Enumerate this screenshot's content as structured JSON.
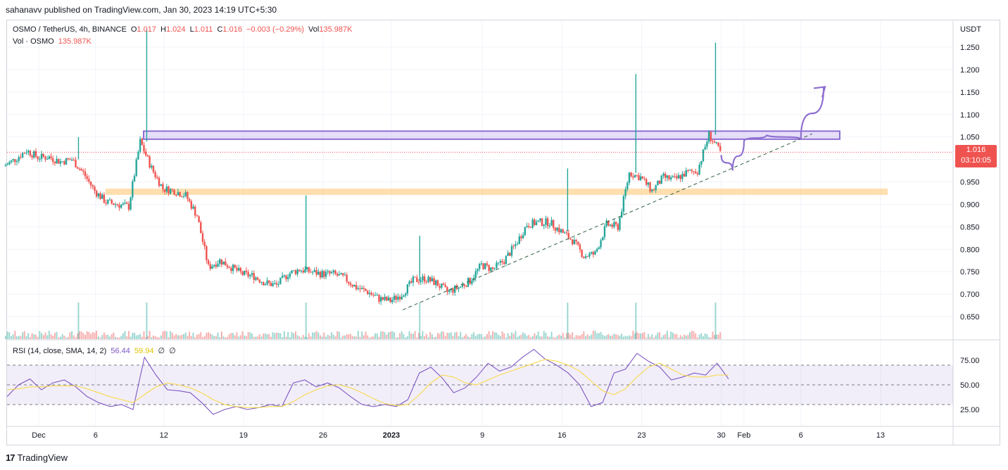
{
  "header": {
    "published": "sahanavv published on TradingView.com, Jan 30, 2023 14:19 UTC+5:30"
  },
  "legend": {
    "symbol": "OSMO / TetherUS, 4h, BINANCE",
    "o_label": "O",
    "o_value": "1.017",
    "h_label": "H",
    "h_value": "1.024",
    "l_label": "L",
    "l_value": "1.011",
    "c_label": "C",
    "c_value": "1.016",
    "change": "−0.003 (−0.29%)",
    "vol_label": "Vol",
    "vol_value": "135.987K",
    "vol_line_label": "Vol · OSMO",
    "vol_line_value": "135.987K"
  },
  "rsi_legend": {
    "label": "RSI (14, close, SMA, 14, 2)",
    "rsi_value": "56.44",
    "sma_value": "59.94",
    "extra1": "∅",
    "extra2": "∅"
  },
  "price_tag": {
    "price": "1.016",
    "countdown": "03:10:05"
  },
  "footer": {
    "brand": "TradingView",
    "logo_glyph": "17"
  },
  "colors": {
    "up": "#26a69a",
    "down": "#ef5350",
    "rsi": "#7e57c2",
    "rsi_ma": "#f7d94c",
    "resistance": "#8e6fd1",
    "support": "#ffc56e"
  },
  "chart_data": [
    {
      "type": "candlestick",
      "title": "OSMO / TetherUS, 4h, BINANCE",
      "y_axis_unit": "USDT",
      "ylim": [
        0.615,
        1.29
      ],
      "y_ticks": [
        "1.250",
        "1.200",
        "1.150",
        "1.100",
        "1.050",
        "1.000",
        "0.950",
        "0.900",
        "0.850",
        "0.800",
        "0.750",
        "0.700",
        "0.650"
      ],
      "x_ticks": [
        "Dec",
        "6",
        "12",
        "19",
        "26",
        "2023",
        "9",
        "16",
        "23",
        "30",
        "Feb",
        "6",
        "13"
      ],
      "last_price": 1.016,
      "series_close": [
        {
          "date": "Nov 28",
          "close": 0.985
        },
        {
          "date": "Nov 29",
          "close": 1.0
        },
        {
          "date": "Nov 30",
          "close": 1.02
        },
        {
          "date": "Dec 1",
          "close": 1.005
        },
        {
          "date": "Dec 2",
          "close": 1.005
        },
        {
          "date": "Dec 3",
          "close": 0.995
        },
        {
          "date": "Dec 4",
          "close": 1.0
        },
        {
          "date": "Dec 5",
          "close": 0.97
        },
        {
          "date": "Dec 6",
          "close": 0.93
        },
        {
          "date": "Dec 7",
          "close": 0.905
        },
        {
          "date": "Dec 8",
          "close": 0.9
        },
        {
          "date": "Dec 9",
          "close": 0.895
        },
        {
          "date": "Dec 10",
          "close": 1.04
        },
        {
          "date": "Dec 11",
          "close": 0.98
        },
        {
          "date": "Dec 12",
          "close": 0.935
        },
        {
          "date": "Dec 13",
          "close": 0.93
        },
        {
          "date": "Dec 14",
          "close": 0.92
        },
        {
          "date": "Dec 15",
          "close": 0.875
        },
        {
          "date": "Dec 16",
          "close": 0.76
        },
        {
          "date": "Dec 17",
          "close": 0.775
        },
        {
          "date": "Dec 18",
          "close": 0.76
        },
        {
          "date": "Dec 19",
          "close": 0.745
        },
        {
          "date": "Dec 20",
          "close": 0.74
        },
        {
          "date": "Dec 21",
          "close": 0.725
        },
        {
          "date": "Dec 22",
          "close": 0.72
        },
        {
          "date": "Dec 23",
          "close": 0.745
        },
        {
          "date": "Dec 24",
          "close": 0.755
        },
        {
          "date": "Dec 25",
          "close": 0.75
        },
        {
          "date": "Dec 26",
          "close": 0.745
        },
        {
          "date": "Dec 27",
          "close": 0.745
        },
        {
          "date": "Dec 28",
          "close": 0.735
        },
        {
          "date": "Dec 29",
          "close": 0.715
        },
        {
          "date": "Dec 30",
          "close": 0.705
        },
        {
          "date": "Dec 31",
          "close": 0.69
        },
        {
          "date": "Jan 1",
          "close": 0.685
        },
        {
          "date": "Jan 2",
          "close": 0.7
        },
        {
          "date": "Jan 3",
          "close": 0.73
        },
        {
          "date": "Jan 4",
          "close": 0.735
        },
        {
          "date": "Jan 5",
          "close": 0.725
        },
        {
          "date": "Jan 6",
          "close": 0.705
        },
        {
          "date": "Jan 7",
          "close": 0.715
        },
        {
          "date": "Jan 8",
          "close": 0.73
        },
        {
          "date": "Jan 9",
          "close": 0.765
        },
        {
          "date": "Jan 10",
          "close": 0.755
        },
        {
          "date": "Jan 11",
          "close": 0.775
        },
        {
          "date": "Jan 12",
          "close": 0.81
        },
        {
          "date": "Jan 13",
          "close": 0.855
        },
        {
          "date": "Jan 14",
          "close": 0.86
        },
        {
          "date": "Jan 15",
          "close": 0.86
        },
        {
          "date": "Jan 16",
          "close": 0.84
        },
        {
          "date": "Jan 17",
          "close": 0.82
        },
        {
          "date": "Jan 18",
          "close": 0.785
        },
        {
          "date": "Jan 19",
          "close": 0.79
        },
        {
          "date": "Jan 20",
          "close": 0.855
        },
        {
          "date": "Jan 21",
          "close": 0.85
        },
        {
          "date": "Jan 22",
          "close": 0.97
        },
        {
          "date": "Jan 23",
          "close": 0.96
        },
        {
          "date": "Jan 24",
          "close": 0.93
        },
        {
          "date": "Jan 25",
          "close": 0.96
        },
        {
          "date": "Jan 26",
          "close": 0.955
        },
        {
          "date": "Jan 27",
          "close": 0.97
        },
        {
          "date": "Jan 28",
          "close": 0.975
        },
        {
          "date": "Jan 29",
          "close": 1.055
        },
        {
          "date": "Jan 30",
          "close": 1.016
        }
      ],
      "wick_highs": [
        {
          "date": "Dec 10",
          "high": 1.29
        },
        {
          "date": "Dec 4",
          "high": 1.05
        },
        {
          "date": "Dec 24",
          "high": 0.92
        },
        {
          "date": "Jan 3",
          "high": 0.83
        },
        {
          "date": "Jan 16",
          "high": 0.98
        },
        {
          "date": "Jan 22",
          "high": 1.19
        },
        {
          "date": "Jan 29",
          "high": 1.26
        }
      ],
      "annotations": {
        "resistance_zone": [
          1.045,
          1.063
        ],
        "support_zone": [
          0.921,
          0.935
        ],
        "trendline": {
          "from": {
            "date": "Jan 2",
            "price": 0.665
          },
          "to": {
            "date": "Feb 7",
            "price": 1.057
          }
        },
        "projection": [
          {
            "date": "Jan 30",
            "price": 1.01
          },
          {
            "date": "Jan 31",
            "price": 0.975
          },
          {
            "date": "Feb 1",
            "price": 1.04
          },
          {
            "date": "Feb 3",
            "price": 1.055
          },
          {
            "date": "Feb 6",
            "price": 1.045
          },
          {
            "date": "Feb 8",
            "price": 1.16
          }
        ]
      }
    },
    {
      "type": "line",
      "title": "RSI (14, close, SMA, 14, 2)",
      "ylim": [
        12,
        95
      ],
      "y_ticks": [
        "75.00",
        "50.00",
        "25.00"
      ],
      "bands": [
        70,
        50,
        30
      ],
      "series": [
        {
          "name": "RSI",
          "values": [
            38,
            50,
            56,
            45,
            52,
            55,
            48,
            38,
            32,
            28,
            30,
            25,
            78,
            60,
            45,
            44,
            42,
            32,
            20,
            25,
            28,
            25,
            27,
            30,
            28,
            52,
            55,
            48,
            52,
            47,
            38,
            30,
            28,
            30,
            28,
            35,
            62,
            68,
            57,
            42,
            47,
            58,
            72,
            64,
            68,
            78,
            86,
            76,
            70,
            62,
            50,
            28,
            32,
            62,
            66,
            82,
            74,
            68,
            55,
            58,
            62,
            60,
            72,
            56
          ]
        },
        {
          "name": "SMA",
          "values": [
            45,
            46,
            48,
            48,
            49,
            49,
            49,
            46,
            42,
            38,
            35,
            32,
            40,
            48,
            52,
            50,
            47,
            42,
            35,
            30,
            28,
            27,
            27,
            28,
            28,
            33,
            40,
            45,
            49,
            50,
            47,
            42,
            36,
            31,
            29,
            30,
            40,
            52,
            60,
            58,
            52,
            50,
            55,
            60,
            64,
            68,
            72,
            76,
            74,
            70,
            64,
            54,
            44,
            40,
            46,
            58,
            68,
            72,
            66,
            60,
            58,
            58,
            60,
            60
          ]
        }
      ]
    }
  ]
}
